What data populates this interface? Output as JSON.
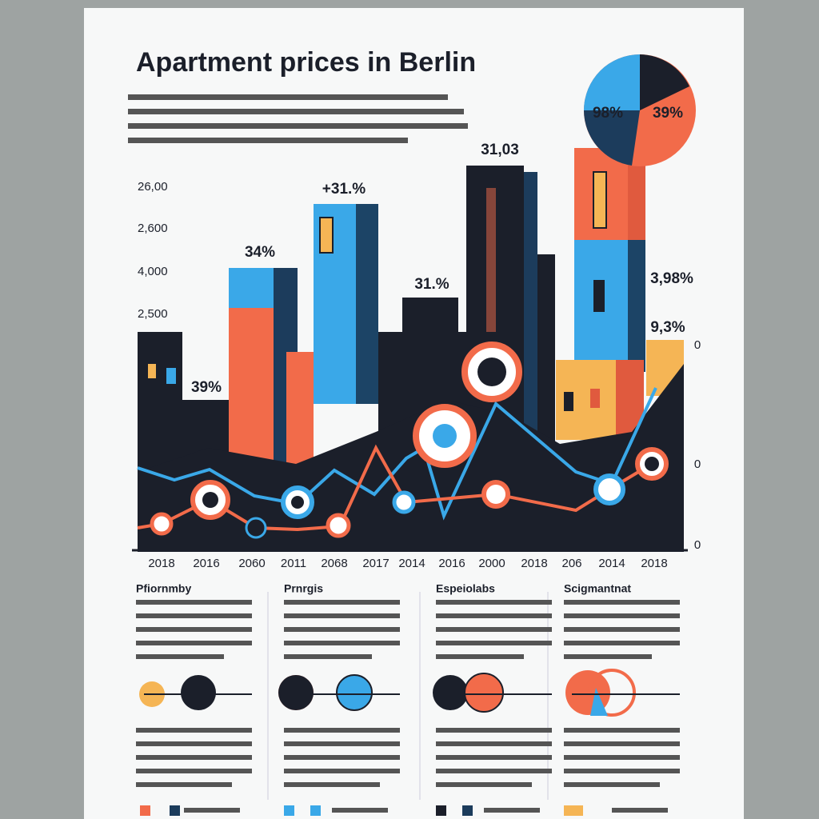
{
  "header": {
    "title": "Apartment prices in Berlin"
  },
  "chart": {
    "y_labels": [
      "26,00",
      "2,600",
      "4,000",
      "2,500"
    ],
    "x_labels": [
      "2018",
      "2016",
      "2060",
      "2011",
      "2068",
      "2017",
      "2014",
      "2016",
      "2000",
      "2018",
      "206",
      "2014",
      "2018"
    ],
    "annotations": [
      "34%",
      "+31.%",
      "31,03",
      "31.%",
      "39%",
      "3,98%",
      "9,3%"
    ],
    "pie_labels": [
      "98%",
      "39%"
    ],
    "right_labels": [
      "0",
      "0",
      "0"
    ]
  },
  "sections": [
    {
      "heading": "Pfiornmby"
    },
    {
      "heading": "Prnrgis"
    },
    {
      "heading": "Espeiolabs"
    },
    {
      "heading": "Scigmantnat"
    }
  ]
}
